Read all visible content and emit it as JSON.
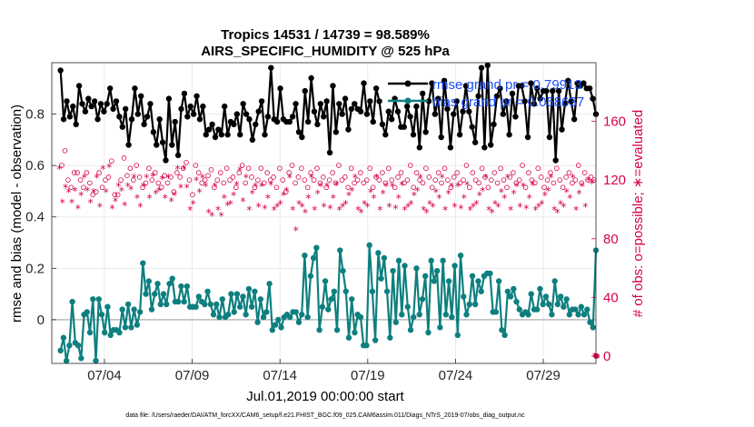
{
  "chart_data": {
    "type": "line",
    "title": "Tropics 14531 / 14739 = 98.589%",
    "subtitle": "AIRS_SPECIFIC_HUMIDITY @ 525 hPa",
    "xlabel": "Jul.01,2019 00:00:00 start",
    "ylabel": "rmse and bias (model - observation)",
    "y2label": "# of obs: o=possible; ∗=evaluated",
    "footer": "data file: /Users/raeder/DAI/ATM_forcXX/CAM6_setup/f.e21.FHIST_BGC.f09_025.CAM6assim.011/Diags_NTrS_2019-07/obs_diag_output.nc",
    "xlim": [
      0.5,
      31.5
    ],
    "ylim": [
      -0.17,
      1.0
    ],
    "y2lim": [
      -5,
      200
    ],
    "x_ticks": [
      3.5,
      8.5,
      13.5,
      18.5,
      23.5,
      28.5
    ],
    "x_tick_labels": [
      "07/04",
      "07/09",
      "07/14",
      "07/19",
      "07/24",
      "07/29"
    ],
    "y_ticks": [
      0,
      0.2,
      0.4,
      0.6,
      0.8
    ],
    "y_tick_labels": [
      "0",
      "0.2",
      "0.4",
      "0.6",
      "0.8"
    ],
    "y2_ticks": [
      0,
      40,
      80,
      120,
      160
    ],
    "y2_tick_labels": [
      "0",
      "40",
      "80",
      "120",
      "160"
    ],
    "legend_position": "top-right",
    "zero_line": 0,
    "colors": {
      "rmse": "#000000",
      "bias": "#0e7f7f",
      "obs": "#d6004f",
      "zero": "#bbbbbb"
    },
    "series": [
      {
        "name": "rmse grand pr = 0.79913",
        "axis": "left",
        "values": [
          0.97,
          0.78,
          0.85,
          0.79,
          0.83,
          0.76,
          0.91,
          0.84,
          0.81,
          0.86,
          0.83,
          0.85,
          0.78,
          0.84,
          0.81,
          0.84,
          0.9,
          0.82,
          0.85,
          0.79,
          0.75,
          0.82,
          0.68,
          0.78,
          0.9,
          0.8,
          0.87,
          0.76,
          0.79,
          0.84,
          0.73,
          0.68,
          0.78,
          0.69,
          0.62,
          0.86,
          0.68,
          0.77,
          0.64,
          0.82,
          0.88,
          0.79,
          0.83,
          0.8,
          0.87,
          0.78,
          0.83,
          0.72,
          0.74,
          0.76,
          0.71,
          0.74,
          0.72,
          0.83,
          0.72,
          0.77,
          0.76,
          0.8,
          0.72,
          0.84,
          0.8,
          0.78,
          0.7,
          0.76,
          0.81,
          0.85,
          0.72,
          0.79,
          0.98,
          0.78,
          0.77,
          0.9,
          0.78,
          0.77,
          0.77,
          0.79,
          0.84,
          0.73,
          0.71,
          0.89,
          0.77,
          0.94,
          0.81,
          0.76,
          0.84,
          0.79,
          0.85,
          0.65,
          0.91,
          0.73,
          0.84,
          0.8,
          0.86,
          0.74,
          0.82,
          0.84,
          0.82,
          0.81,
          0.92,
          0.8,
          0.85,
          0.77,
          0.9,
          0.85,
          0.76,
          0.72,
          0.81,
          0.78,
          0.86,
          0.81,
          0.75,
          0.75,
          0.83,
          0.79,
          0.72,
          0.83,
          0.67,
          0.88,
          0.73,
          0.85,
          0.92,
          0.8,
          0.86,
          0.71,
          0.93,
          0.82,
          0.67,
          0.8,
          0.85,
          0.72,
          0.81,
          0.91,
          0.81,
          0.75,
          0.69,
          0.87,
          0.98,
          0.67,
          0.99,
          0.68,
          0.76,
          0.87,
          0.9,
          0.8,
          0.85,
          0.72,
          0.88,
          0.79,
          0.91,
          0.91,
          0.85,
          0.71,
          0.92,
          0.84,
          0.9,
          0.86,
          0.89,
          0.89,
          0.71,
          0.89,
          0.62,
          0.89,
          0.74,
          0.84,
          0.93,
          0.85,
          0.78,
          0.92,
          0.91,
          0.92,
          0.9,
          0.9,
          0.86,
          0.8
        ]
      },
      {
        "name": "bias grand pr = 0.058637",
        "axis": "left",
        "values": [
          -0.12,
          -0.07,
          -0.16,
          -0.1,
          0.07,
          -0.09,
          -0.1,
          -0.15,
          0.02,
          0.03,
          -0.05,
          0.08,
          -0.16,
          0.08,
          0.02,
          -0.05,
          0.05,
          -0.06,
          -0.04,
          -0.04,
          -0.05,
          0.04,
          -0.03,
          0.06,
          -0.03,
          0.04,
          -0.02,
          0.03,
          0.22,
          0.1,
          0.15,
          0.04,
          0.1,
          0.14,
          0.06,
          0.1,
          0.06,
          0.14,
          0.16,
          0.07,
          0.07,
          0.13,
          0.07,
          0.13,
          0.05,
          0.05,
          0.05,
          0.09,
          0.07,
          0.06,
          0.11,
          0.06,
          0.02,
          0.06,
          0.01,
          0.08,
          0.01,
          0.02,
          0.1,
          0.03,
          0.1,
          0.05,
          0.09,
          0.02,
          0.12,
          0.05,
          0.11,
          -0.01,
          0.08,
          0.01,
          0.03,
          0.14,
          -0.04,
          -0.02,
          0.0,
          -0.03,
          0.01,
          0.02,
          0.01,
          0.03,
          0.03,
          -0.01,
          0.02,
          0.25,
          0.01,
          0.17,
          0.24,
          0.28,
          -0.04,
          0.05,
          0.15,
          0.04,
          0.08,
          0.11,
          -0.04,
          0.27,
          0.19,
          0.11,
          -0.07,
          0.08,
          -0.05,
          0.02,
          0.01,
          -0.1,
          -0.1,
          0.29,
          0.11,
          -0.08,
          0.26,
          0.16,
          0.24,
          0.11,
          -0.07,
          0.19,
          -0.01,
          0.23,
          0.02,
          0.21,
          0.05,
          -0.04,
          0.01,
          0.2,
          0.02,
          0.08,
          0.17,
          -0.05,
          0.23,
          0.15,
          0.19,
          -0.03,
          0.23,
          0.02,
          0.15,
          0.01,
          0.21,
          -0.06,
          0.25,
          0.09,
          0.02,
          0.06,
          0.17,
          0.06,
          0.15,
          0.11,
          0.17,
          0.18,
          0.18,
          0.03,
          0.03,
          0.15,
          -0.04,
          -0.06,
          0.11,
          0.09,
          0.12,
          0.07,
          0.04,
          0.02,
          0.03,
          0.02,
          0.1,
          0.04,
          0.04,
          0.12,
          0.06,
          0.09,
          0.06,
          0.02,
          0.15,
          0.06,
          0.09,
          0.05,
          0.08,
          0.02,
          0.04,
          0.04,
          0.02,
          0.05,
          0.02,
          0.04,
          -0.01,
          -0.03,
          0.27
        ]
      },
      {
        "name": "obs possible",
        "axis": "right",
        "marker": "o",
        "values": [
          130,
          140,
          120,
          115,
          125,
          125,
          120,
          115,
          125,
          118,
          110,
          112,
          125,
          115,
          120,
          122,
          133,
          110,
          110,
          120,
          135,
          123,
          128,
          120,
          130,
          122,
          115,
          118,
          128,
          120,
          125,
          118,
          115,
          123,
          118,
          122,
          112,
          125,
          122,
          128,
          132,
          120,
          110,
          130,
          125,
          118,
          120,
          123,
          127,
          115,
          120,
          125,
          118,
          128,
          120,
          122,
          115,
          125,
          130,
          118,
          128,
          122,
          115,
          120,
          128,
          118,
          125,
          120,
          122,
          115,
          128,
          120,
          112,
          125,
          130,
          118,
          122,
          128,
          120,
          115,
          125,
          120,
          128,
          118,
          122,
          115,
          120,
          125,
          118,
          130,
          120,
          122,
          115,
          128,
          118,
          120,
          125,
          118,
          120,
          128,
          115,
          122,
          120,
          125,
          118,
          128,
          120,
          115,
          122,
          125,
          118,
          120,
          130,
          115,
          125,
          120,
          118,
          128,
          122,
          115,
          120,
          125,
          118,
          128,
          120,
          115,
          122,
          125,
          118,
          120,
          130,
          115,
          125,
          120,
          118,
          128,
          122,
          115,
          120,
          125,
          118,
          128,
          120,
          115,
          122,
          125,
          118,
          120,
          130,
          115,
          125,
          120,
          118,
          128,
          122,
          115,
          120,
          125,
          118,
          128,
          120,
          115,
          122,
          125,
          118,
          120,
          130,
          118,
          125,
          120,
          122,
          120,
          0
        ]
      },
      {
        "name": "obs evaluated",
        "axis": "right",
        "marker": "*",
        "values": [
          128,
          105,
          115,
          112,
          105,
          113,
          101,
          110,
          122,
          113,
          105,
          112,
          122,
          102,
          128,
          112,
          129,
          101,
          106,
          116,
          113,
          103,
          116,
          114,
          122,
          108,
          102,
          116,
          122,
          108,
          123,
          111,
          113,
          121,
          108,
          122,
          106,
          110,
          128,
          115,
          128,
          115,
          100,
          104,
          120,
          112,
          122,
          116,
          98,
          96,
          116,
          100,
          96,
          108,
          103,
          104,
          110,
          117,
          127,
          106,
          122,
          100,
          111,
          116,
          102,
          116,
          101,
          108,
          117,
          100,
          102,
          104,
          110,
          113,
          122,
          100,
          86,
          104,
          102,
          98,
          108,
          122,
          100,
          111,
          116,
          102,
          116,
          101,
          108,
          117,
          100,
          102,
          104,
          110,
          113,
          122,
          100,
          98,
          104,
          102,
          112,
          108,
          122,
          100,
          111,
          116,
          102,
          116,
          101,
          108,
          117,
          100,
          102,
          104,
          110,
          113,
          122,
          100,
          98,
          104,
          102,
          112,
          108,
          122,
          100,
          111,
          116,
          102,
          116,
          101,
          108,
          117,
          100,
          102,
          104,
          110,
          113,
          122,
          100,
          98,
          104,
          102,
          112,
          108,
          122,
          100,
          111,
          116,
          102,
          116,
          101,
          108,
          117,
          100,
          102,
          104,
          110,
          113,
          122,
          100,
          98,
          104,
          102,
          112,
          108,
          122,
          100,
          111,
          116,
          102,
          120,
          118,
          0
        ]
      }
    ]
  }
}
